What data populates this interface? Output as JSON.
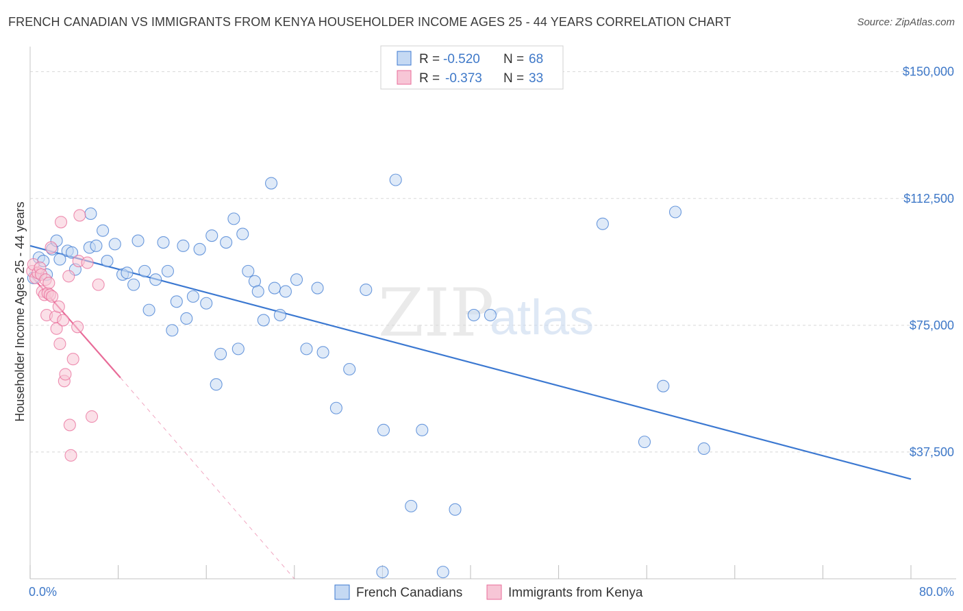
{
  "title": "FRENCH CANADIAN VS IMMIGRANTS FROM KENYA HOUSEHOLDER INCOME AGES 25 - 44 YEARS CORRELATION CHART",
  "source": "Source: ZipAtlas.com",
  "watermark": {
    "zip": "ZIP",
    "atlas": "atlas"
  },
  "colors": {
    "blue": "#3b78d1",
    "blue_fill": "#c5d9f3",
    "pink": "#e86b98",
    "pink_fill": "#f7c6d6",
    "tick": "#3e78c8",
    "grid": "#d8d8d8"
  },
  "legend": {
    "rows": [
      {
        "r_label": "R =",
        "r_value": "-0.520",
        "n_label": "N =",
        "n_value": "68",
        "color": "blue"
      },
      {
        "r_label": "R =",
        "r_value": "-0.373",
        "n_label": "N =",
        "n_value": "33",
        "color": "pink"
      }
    ]
  },
  "bottom_legend": [
    "French Canadians",
    "Immigrants from Kenya"
  ],
  "chart_data": {
    "type": "scatter",
    "title": "FRENCH CANADIAN VS IMMIGRANTS FROM KENYA HOUSEHOLDER INCOME AGES 25 - 44 YEARS CORRELATION CHART",
    "xlabel": "",
    "ylabel": "Householder Income Ages 25 - 44 years",
    "xlim": [
      0,
      80
    ],
    "ylim": [
      0,
      155000
    ],
    "x_tick_labels": [
      "0.0%",
      "80.0%"
    ],
    "y_ticks": [
      37500,
      75000,
      112500,
      150000
    ],
    "y_tick_labels": [
      "$37,500",
      "$75,000",
      "$112,500",
      "$150,000"
    ],
    "grid": true,
    "legend_position": "top-center",
    "series": [
      {
        "name": "French Canadians",
        "color": "blue",
        "trend": {
          "x": [
            0,
            80
          ],
          "y": [
            98500,
            29500
          ]
        },
        "points": [
          [
            0.3,
            89000
          ],
          [
            0.8,
            95000
          ],
          [
            1.2,
            94000
          ],
          [
            1.5,
            90000
          ],
          [
            2.0,
            97500
          ],
          [
            2.4,
            100000
          ],
          [
            2.7,
            94500
          ],
          [
            3.4,
            97000
          ],
          [
            3.8,
            96500
          ],
          [
            4.1,
            91500
          ],
          [
            5.4,
            98000
          ],
          [
            5.5,
            108000
          ],
          [
            6.0,
            98500
          ],
          [
            6.6,
            103000
          ],
          [
            7.0,
            94000
          ],
          [
            7.7,
            99000
          ],
          [
            8.4,
            90000
          ],
          [
            8.8,
            90500
          ],
          [
            9.4,
            87000
          ],
          [
            9.8,
            100000
          ],
          [
            10.4,
            91000
          ],
          [
            10.8,
            79500
          ],
          [
            11.4,
            88500
          ],
          [
            12.1,
            99500
          ],
          [
            12.5,
            91000
          ],
          [
            12.9,
            73500
          ],
          [
            13.3,
            82000
          ],
          [
            13.9,
            98500
          ],
          [
            14.2,
            77000
          ],
          [
            14.8,
            83500
          ],
          [
            15.4,
            97500
          ],
          [
            16.0,
            81500
          ],
          [
            16.5,
            101500
          ],
          [
            16.9,
            57500
          ],
          [
            17.3,
            66500
          ],
          [
            17.8,
            99500
          ],
          [
            18.5,
            106500
          ],
          [
            18.9,
            68000
          ],
          [
            19.3,
            102000
          ],
          [
            19.8,
            91000
          ],
          [
            20.4,
            88000
          ],
          [
            20.7,
            85000
          ],
          [
            21.2,
            76500
          ],
          [
            21.9,
            117000
          ],
          [
            22.2,
            86000
          ],
          [
            22.7,
            78000
          ],
          [
            23.2,
            85000
          ],
          [
            24.2,
            88500
          ],
          [
            25.1,
            68000
          ],
          [
            26.1,
            86000
          ],
          [
            26.6,
            67000
          ],
          [
            27.8,
            50500
          ],
          [
            29.0,
            62000
          ],
          [
            30.5,
            85500
          ],
          [
            32.0,
            2000
          ],
          [
            32.1,
            44000
          ],
          [
            33.2,
            118000
          ],
          [
            34.6,
            21500
          ],
          [
            35.6,
            44000
          ],
          [
            37.5,
            2000
          ],
          [
            38.6,
            20500
          ],
          [
            40.3,
            78000
          ],
          [
            41.8,
            78000
          ],
          [
            52.0,
            105000
          ],
          [
            55.8,
            40500
          ],
          [
            57.5,
            57000
          ],
          [
            58.6,
            108500
          ],
          [
            61.2,
            38500
          ]
        ]
      },
      {
        "name": "Immigrants from Kenya",
        "color": "pink",
        "trend": {
          "x": [
            0,
            8.2
          ],
          "y": [
            90000,
            59500
          ]
        },
        "trend_dashed": {
          "x": [
            8.2,
            24.0
          ],
          "y": [
            59500,
            0
          ]
        },
        "points": [
          [
            0.2,
            91000
          ],
          [
            0.3,
            93000
          ],
          [
            0.5,
            89000
          ],
          [
            0.7,
            90500
          ],
          [
            0.9,
            92000
          ],
          [
            1.0,
            90000
          ],
          [
            1.1,
            85000
          ],
          [
            1.3,
            84000
          ],
          [
            1.4,
            88500
          ],
          [
            1.5,
            78000
          ],
          [
            1.6,
            84500
          ],
          [
            1.7,
            87500
          ],
          [
            1.8,
            84000
          ],
          [
            1.9,
            98000
          ],
          [
            2.0,
            83500
          ],
          [
            2.3,
            77500
          ],
          [
            2.4,
            74000
          ],
          [
            2.6,
            80500
          ],
          [
            2.7,
            69500
          ],
          [
            2.8,
            105500
          ],
          [
            3.0,
            76500
          ],
          [
            3.1,
            58500
          ],
          [
            3.2,
            60500
          ],
          [
            3.5,
            89500
          ],
          [
            3.6,
            45500
          ],
          [
            3.7,
            36500
          ],
          [
            3.9,
            65000
          ],
          [
            4.3,
            74500
          ],
          [
            4.4,
            94000
          ],
          [
            4.5,
            107500
          ],
          [
            5.2,
            93500
          ],
          [
            5.6,
            48000
          ],
          [
            6.2,
            87000
          ]
        ]
      }
    ]
  }
}
